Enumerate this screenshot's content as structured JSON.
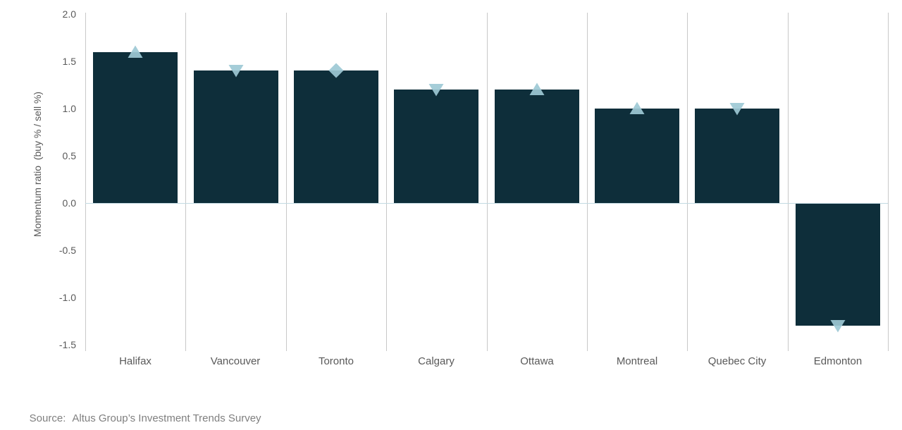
{
  "chart_data": {
    "type": "bar",
    "title": "",
    "ylabel": "Momentum ratio  (buy % / sell %)",
    "xlabel": "",
    "categories": [
      "Halifax",
      "Vancouver",
      "Toronto",
      "Calgary",
      "Ottawa",
      "Montreal",
      "Quebec City",
      "Edmonton"
    ],
    "values": [
      1.6,
      1.4,
      1.4,
      1.2,
      1.2,
      1.0,
      1.0,
      -1.3
    ],
    "markers": [
      "up",
      "down",
      "diamond",
      "down",
      "up",
      "up",
      "down",
      "down"
    ],
    "ylim": [
      -1.5,
      2.0
    ],
    "ytick_step": 0.5,
    "ytick_labels": [
      "2.0",
      "1.5",
      "1.0",
      "0.5",
      "0.0",
      "-0.5",
      "-1.0",
      "-1.5"
    ],
    "grid": "vertical category separators, light gray; horizontal zero line light blue",
    "legend": "none",
    "colors": {
      "bar": "#0e2e3a",
      "marker": "#9dc9d5",
      "gridline": "#c8c8c8",
      "zero_line": "#c3dae2",
      "axis_text": "#595959",
      "source_text": "#7f7f7f"
    }
  },
  "source": {
    "label": "Source:",
    "text": "Altus Group’s Investment Trends Survey"
  }
}
